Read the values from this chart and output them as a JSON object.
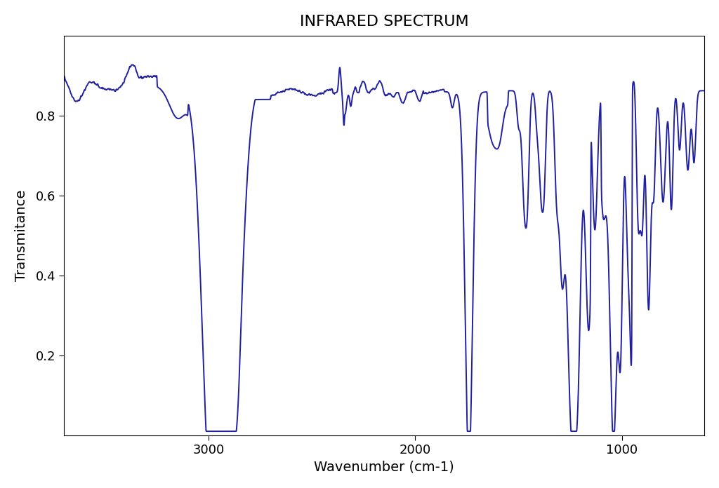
{
  "title": "INFRARED SPECTRUM",
  "xlabel": "Wavenumber (cm-1)",
  "ylabel": "Transmitance",
  "line_color": "#2020a0",
  "line_width": 1.4,
  "xlim": [
    3700,
    600
  ],
  "ylim": [
    0.0,
    1.0
  ],
  "yticks": [
    0.2,
    0.4,
    0.6,
    0.8
  ],
  "xticks": [
    3000,
    2000,
    1000
  ],
  "background_color": "#ffffff",
  "figsize": [
    10.24,
    6.96
  ],
  "dpi": 100
}
